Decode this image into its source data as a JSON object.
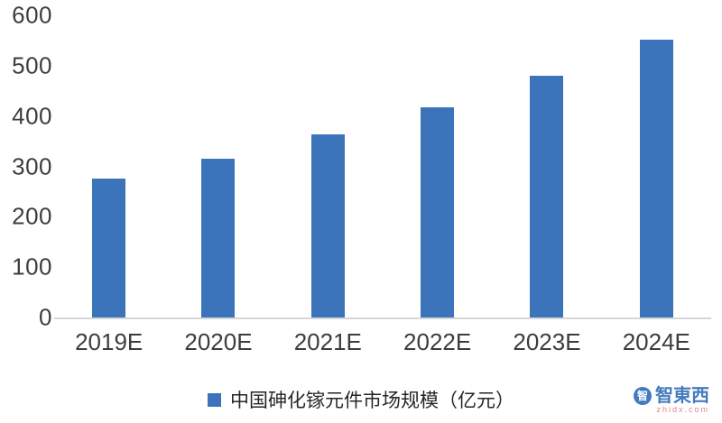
{
  "chart_data": {
    "type": "bar",
    "title": "",
    "categories": [
      "2019E",
      "2020E",
      "2021E",
      "2022E",
      "2023E",
      "2024E"
    ],
    "values": [
      275,
      316,
      363,
      417,
      480,
      551
    ],
    "legend": "中国砷化镓元件市场规模（亿元）",
    "xlabel": "",
    "ylabel": "",
    "ylim": [
      0,
      600
    ],
    "yticks": [
      600,
      500,
      400,
      300,
      200,
      100,
      0
    ],
    "bar_color": "#3b74ba",
    "grid": false,
    "legend_position": "bottom"
  },
  "watermark": {
    "name": "智東西",
    "logo_glyph": "智",
    "domain": "zhidx.com"
  }
}
